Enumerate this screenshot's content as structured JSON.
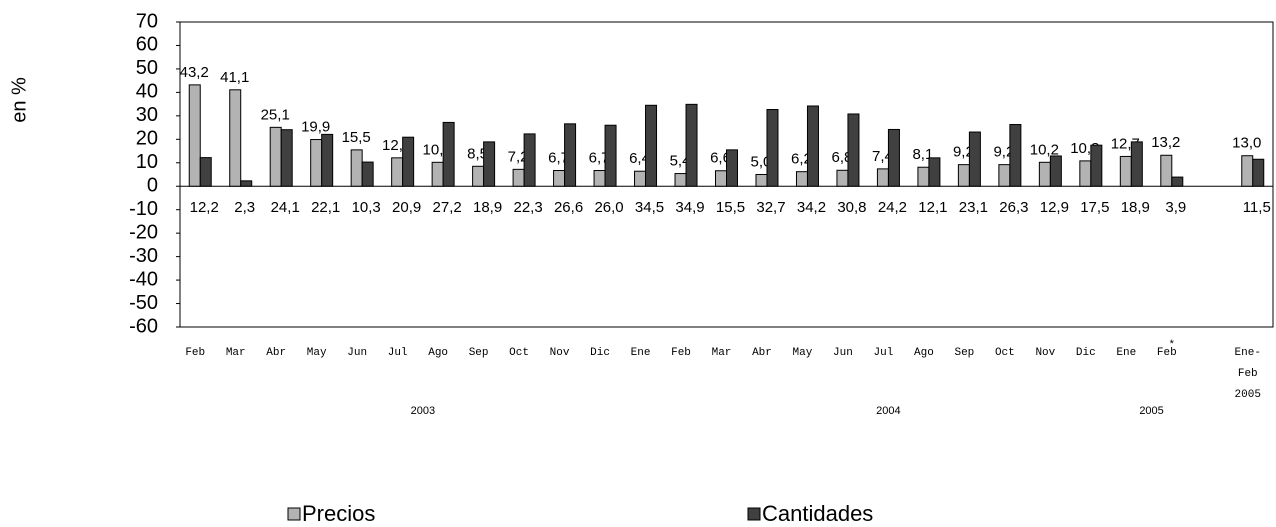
{
  "chart_data": {
    "type": "bar",
    "y_label": "en %",
    "categories": [
      "Feb",
      "Mar",
      "Abr",
      "May",
      "Jun",
      "Jul",
      "Ago",
      "Sep",
      "Oct",
      "Nov",
      "Dic",
      "Ene",
      "Feb",
      "Mar",
      "Abr",
      "May",
      "Jun",
      "Jul",
      "Ago",
      "Sep",
      "Oct",
      "Nov",
      "Dic",
      "Ene",
      "Feb",
      null,
      "Ene-\nFeb\n2005"
    ],
    "year_labels": [
      {
        "label": "2003",
        "from": 0,
        "to": 11
      },
      {
        "label": "2004",
        "from": 12,
        "to": 22
      },
      {
        "label": "2005",
        "from": 23,
        "to": 24
      }
    ],
    "footnote_mark": {
      "label": "*",
      "category": 24
    },
    "series": [
      {
        "name": "Precios",
        "color": "#b3b3b3",
        "values": [
          43.2,
          41.1,
          25.1,
          19.9,
          15.5,
          12.1,
          10.2,
          8.5,
          7.2,
          6.7,
          6.7,
          6.4,
          5.4,
          6.6,
          5.0,
          6.2,
          6.8,
          7.4,
          8.1,
          9.2,
          9.2,
          10.2,
          10.8,
          12.7,
          13.2,
          null,
          13.0
        ],
        "value_labels": [
          "43,2",
          "41,1",
          "25,1",
          "19,9",
          "15,5",
          "12,1",
          "10,2",
          "8,5",
          "7,2",
          "6,7",
          "6,7",
          "6,4",
          "5,4",
          "6,6",
          "5,0",
          "6,2",
          "6,8",
          "7,4",
          "8,1",
          "9,2",
          "9,2",
          "10,2",
          "10,8",
          "12,7",
          "13,2",
          null,
          "13,0"
        ]
      },
      {
        "name": "Cantidades",
        "color": "#404040",
        "values": [
          12.2,
          2.3,
          24.1,
          22.1,
          10.3,
          20.9,
          27.2,
          18.9,
          22.3,
          26.6,
          26.0,
          34.5,
          34.9,
          15.5,
          32.7,
          34.2,
          30.8,
          24.2,
          12.1,
          23.1,
          26.3,
          12.9,
          17.5,
          18.9,
          3.9,
          null,
          11.5
        ],
        "value_labels": [
          "12,2",
          "2,3",
          "24,1",
          "22,1",
          "10,3",
          "20,9",
          "27,2",
          "18,9",
          "22,3",
          "26,6",
          "26,0",
          "34,5",
          "34,9",
          "15,5",
          "32,7",
          "34,2",
          "30,8",
          "24,2",
          "12,1",
          "23,1",
          "26,3",
          "12,9",
          "17,5",
          "18,9",
          "3,9",
          null,
          "11,5"
        ]
      }
    ],
    "ylim": [
      -60,
      70
    ],
    "yticks": [
      -60,
      -50,
      -40,
      -30,
      -20,
      -10,
      0,
      10,
      20,
      30,
      40,
      50,
      60,
      70
    ],
    "legend": "bottom"
  }
}
